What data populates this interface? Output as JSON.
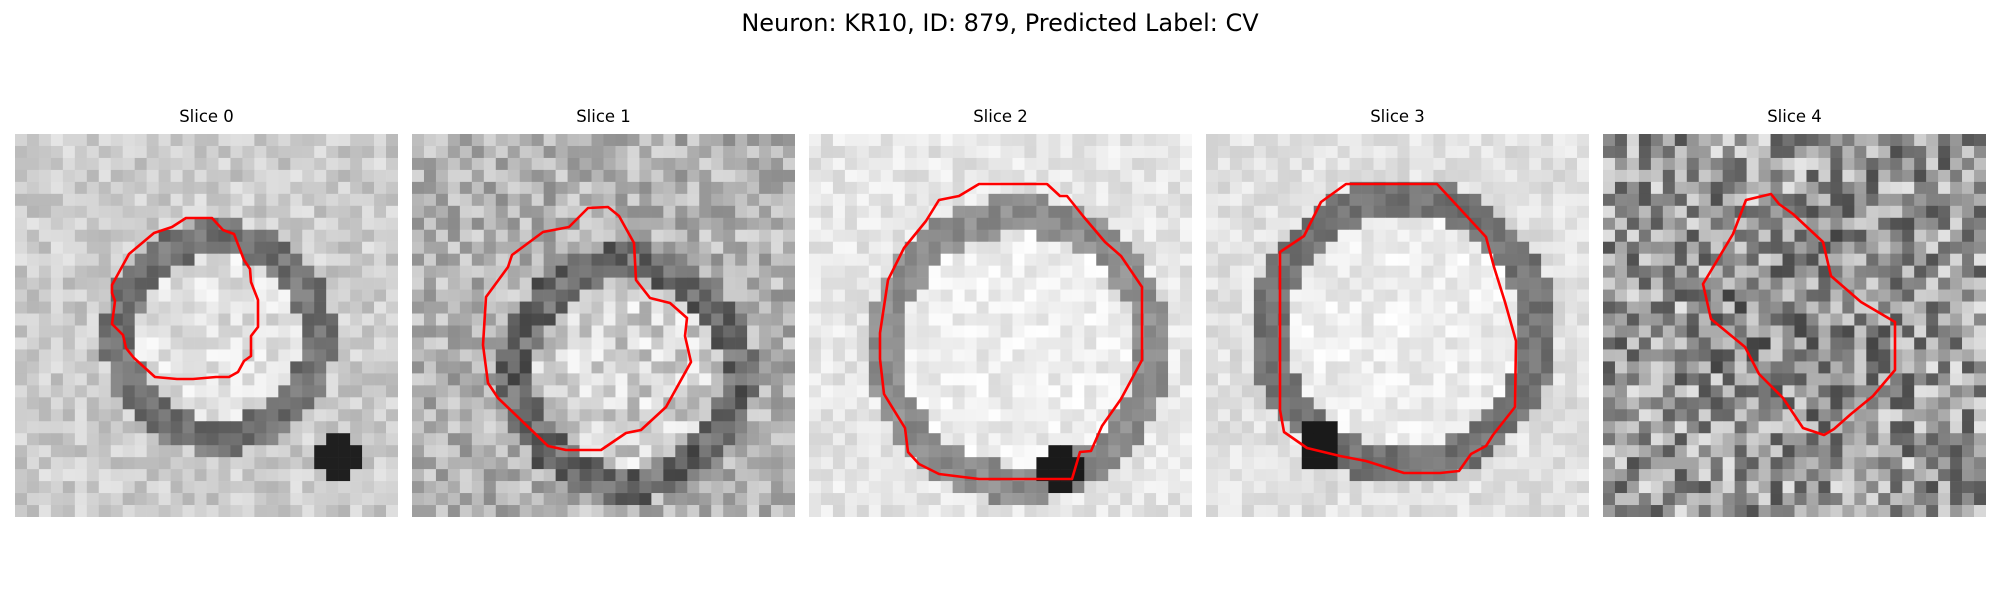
{
  "figure": {
    "title": "Neuron: KR10, ID: 879, Predicted Label: CV"
  },
  "contour_color": "#ff0000",
  "colormap": "gray",
  "slices": [
    {
      "title": "Slice 0"
    },
    {
      "title": "Slice 1"
    },
    {
      "title": "Slice 2"
    },
    {
      "title": "Slice 3"
    },
    {
      "title": "Slice 4"
    }
  ]
}
